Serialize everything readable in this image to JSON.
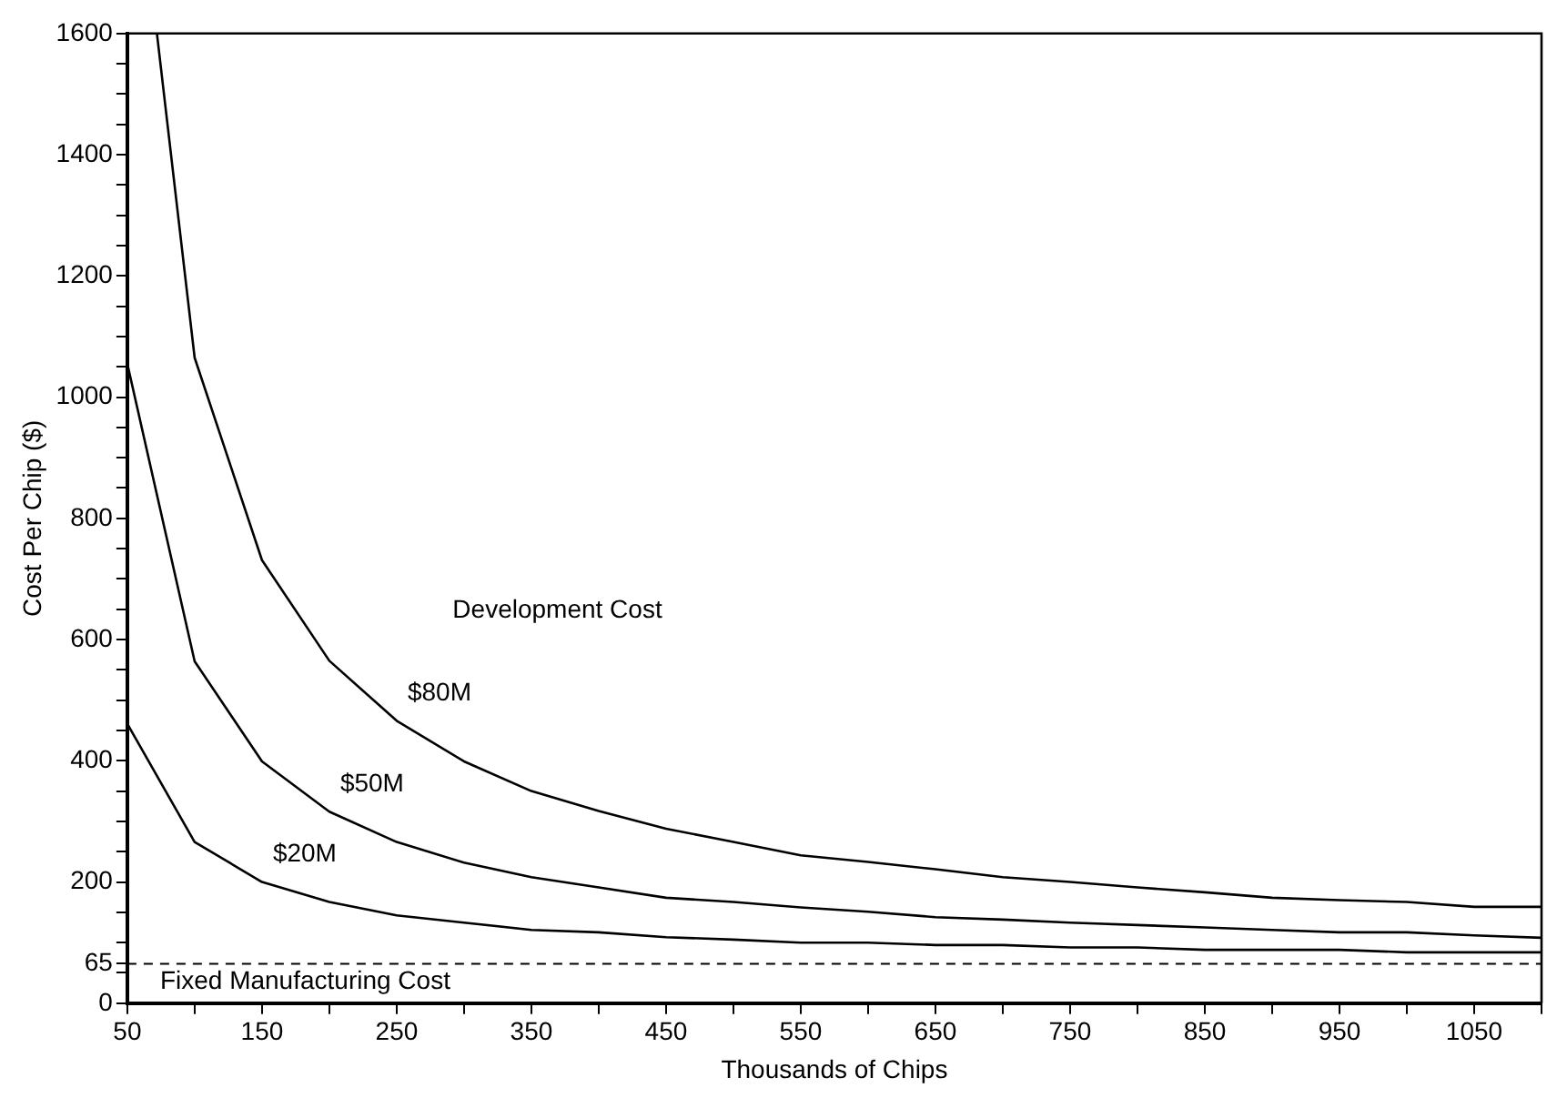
{
  "chart_data": {
    "type": "line",
    "xlabel": "Thousands of Chips",
    "ylabel": "Cost Per Chip ($)",
    "xlim": [
      50,
      1100
    ],
    "ylim": [
      0,
      1600
    ],
    "xticks": [
      50,
      {
        "value": 100,
        "label": null
      },
      150,
      {
        "value": 200,
        "label": null
      },
      250,
      {
        "value": 300,
        "label": null
      },
      350,
      {
        "value": 400,
        "label": null
      },
      450,
      {
        "value": 500,
        "label": null
      },
      550,
      {
        "value": 600,
        "label": null
      },
      650,
      {
        "value": 700,
        "label": null
      },
      750,
      {
        "value": 800,
        "label": null
      },
      850,
      {
        "value": 900,
        "label": null
      },
      950,
      {
        "value": 1000,
        "label": null
      },
      1050,
      {
        "value": 1100,
        "label": null
      }
    ],
    "yticks": [
      0,
      {
        "value": 50,
        "label": null
      },
      65,
      {
        "value": 100,
        "label": null
      },
      {
        "value": 150,
        "label": null
      },
      200,
      {
        "value": 250,
        "label": null
      },
      {
        "value": 300,
        "label": null
      },
      {
        "value": 350,
        "label": null
      },
      400,
      {
        "value": 450,
        "label": null
      },
      {
        "value": 500,
        "label": null
      },
      {
        "value": 550,
        "label": null
      },
      600,
      {
        "value": 650,
        "label": null
      },
      {
        "value": 700,
        "label": null
      },
      {
        "value": 750,
        "label": null
      },
      800,
      {
        "value": 850,
        "label": null
      },
      {
        "value": 900,
        "label": null
      },
      {
        "value": 950,
        "label": null
      },
      1000,
      {
        "value": 1050,
        "label": null
      },
      {
        "value": 1100,
        "label": null
      },
      {
        "value": 1150,
        "label": null
      },
      1200,
      {
        "value": 1250,
        "label": null
      },
      {
        "value": 1300,
        "label": null
      },
      {
        "value": 1350,
        "label": null
      },
      1400,
      {
        "value": 1450,
        "label": null
      },
      {
        "value": 1500,
        "label": null
      },
      {
        "value": 1550,
        "label": null
      },
      1600
    ],
    "grid": false,
    "legend": false,
    "marker": "none",
    "line_style": "solid",
    "x": [
      50,
      100,
      150,
      200,
      250,
      300,
      350,
      400,
      450,
      500,
      550,
      600,
      650,
      700,
      750,
      800,
      850,
      900,
      950,
      1000,
      1050,
      1100
    ],
    "series": [
      {
        "name": "$80M",
        "color": "#000000",
        "x": [
          72,
          100,
          150,
          200,
          250,
          300,
          350,
          400,
          450,
          500,
          550,
          600,
          650,
          700,
          750,
          800,
          850,
          900,
          950,
          1000,
          1050,
          1100
        ],
        "values": [
          1600,
          1065,
          731,
          565,
          466,
          399,
          350,
          317,
          288,
          266,
          244,
          233,
          221,
          208,
          200,
          191,
          183,
          174,
          170,
          167,
          159,
          159
        ]
      },
      {
        "name": "$50M",
        "color": "#000000",
        "values": [
          1055,
          564,
          399,
          316,
          266,
          232,
          208,
          191,
          174,
          167,
          158,
          151,
          142,
          138,
          133,
          129,
          125,
          121,
          117,
          117,
          112,
          108
        ]
      },
      {
        "name": "$20M",
        "color": "#000000",
        "values": [
          461,
          266,
          200,
          167,
          145,
          133,
          121,
          117,
          109,
          105,
          100,
          100,
          96,
          96,
          92,
          92,
          88,
          88,
          88,
          84,
          84,
          84
        ]
      }
    ],
    "ref_lines": [
      {
        "axis": "y",
        "value": 65,
        "label": "Fixed Manufacturing Cost",
        "color": "#000000",
        "line_style": "dashed"
      }
    ],
    "annotations": [
      "Development Cost"
    ]
  }
}
